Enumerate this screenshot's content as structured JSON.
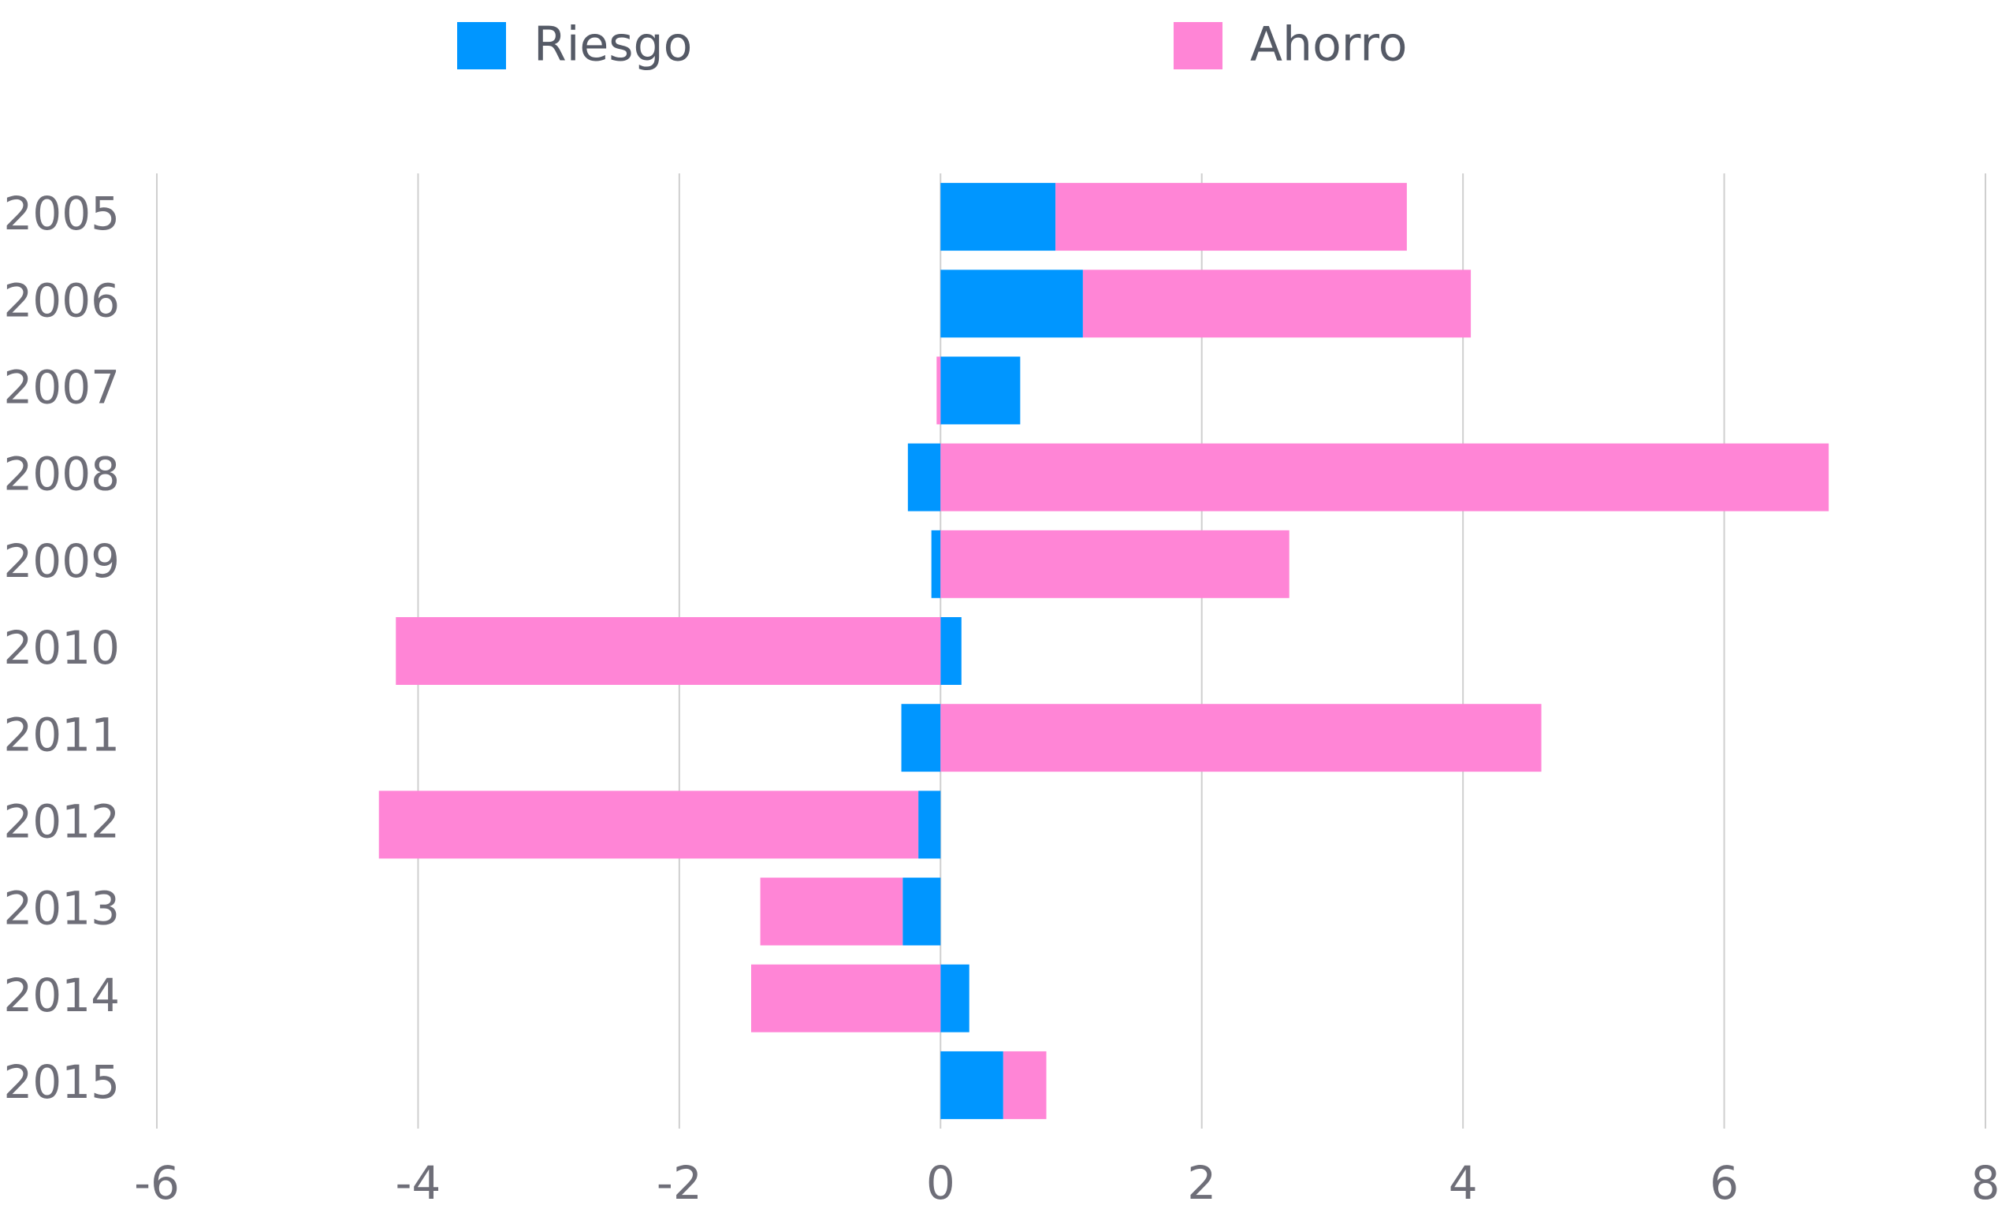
{
  "chart_data": {
    "type": "stacked_barh",
    "categories": [
      "2005",
      "2006",
      "2007",
      "2008",
      "2009",
      "2010",
      "2011",
      "2012",
      "2013",
      "2014",
      "2015"
    ],
    "series": [
      {
        "name": "Riesgo",
        "color": "#0096ff",
        "values": [
          0.88,
          1.09,
          0.61,
          -0.25,
          -0.07,
          0.16,
          -0.3,
          -0.17,
          -0.29,
          0.22,
          0.48
        ]
      },
      {
        "name": "Ahorro",
        "color": "#ff85d6",
        "values": [
          2.69,
          2.97,
          -0.03,
          6.8,
          2.67,
          -4.17,
          4.6,
          -4.13,
          -1.09,
          -1.45,
          0.33
        ]
      }
    ],
    "xlim": [
      -6,
      8
    ],
    "xticks": [
      -6,
      -4,
      -2,
      0,
      2,
      4,
      6,
      8
    ],
    "grid": true,
    "legend": "top"
  }
}
